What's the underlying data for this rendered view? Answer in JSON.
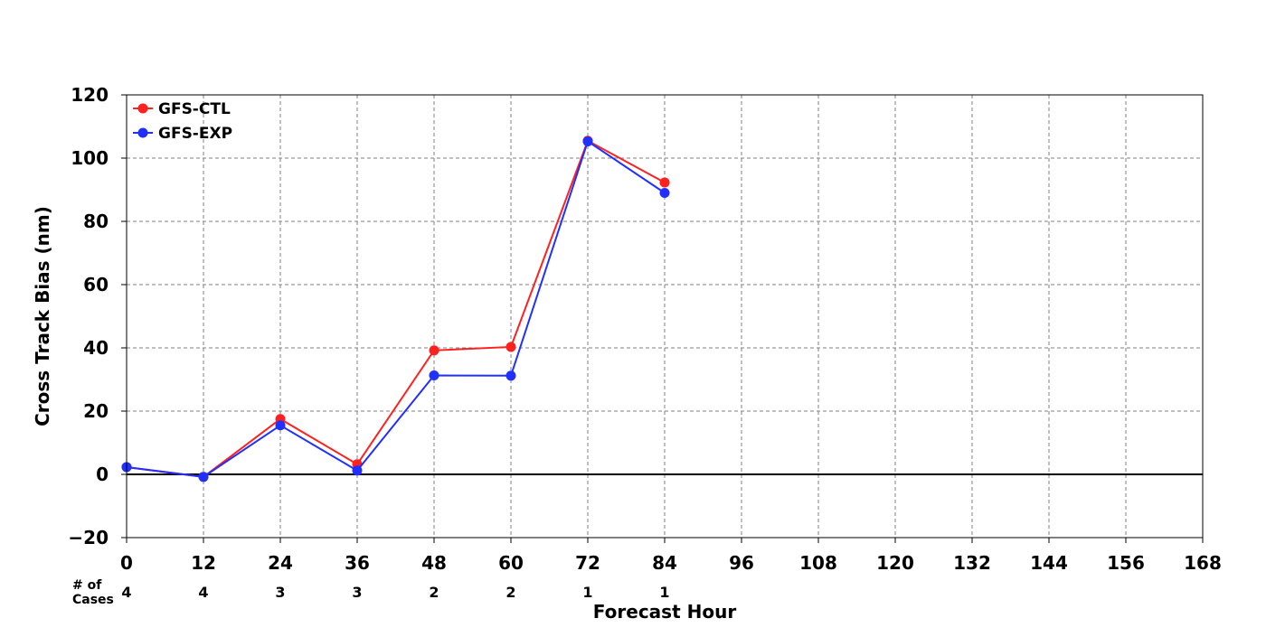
{
  "chart_data": {
    "type": "line",
    "title": "",
    "xlabel": "Forecast Hour",
    "ylabel": "Cross Track Bias (nm)",
    "xlim": [
      0,
      168
    ],
    "ylim": [
      -20,
      120
    ],
    "x_ticks": [
      0,
      12,
      24,
      36,
      48,
      60,
      72,
      84,
      96,
      108,
      120,
      132,
      144,
      156,
      168
    ],
    "y_ticks": [
      -20,
      0,
      20,
      40,
      60,
      80,
      100,
      120
    ],
    "x_tick_labels": [
      "0",
      "12",
      "24",
      "36",
      "48",
      "60",
      "72",
      "84",
      "96",
      "108",
      "120",
      "132",
      "144",
      "156",
      "168"
    ],
    "y_tick_labels": [
      "−20",
      "0",
      "20",
      "40",
      "60",
      "80",
      "100",
      "120"
    ],
    "grid": true,
    "grid_style": "dashed",
    "zero_line": true,
    "legend_position": "top-left",
    "series": [
      {
        "name": "GFS-CTL",
        "color": "#ff2020",
        "x": [
          0,
          12,
          24,
          36,
          48,
          60,
          72,
          84
        ],
        "values": [
          2.3,
          -0.8,
          17.5,
          3.2,
          39.2,
          40.3,
          105.5,
          92.3
        ]
      },
      {
        "name": "GFS-EXP",
        "color": "#2030ff",
        "x": [
          0,
          12,
          24,
          36,
          48,
          60,
          72,
          84
        ],
        "values": [
          2.3,
          -0.8,
          15.5,
          1.2,
          31.3,
          31.2,
          105.3,
          89.0
        ]
      }
    ],
    "cases_label_line1": "# of",
    "cases_label_line2": "Cases",
    "cases": {
      "x": [
        0,
        12,
        24,
        36,
        48,
        60,
        72,
        84
      ],
      "labels": [
        "4",
        "4",
        "3",
        "3",
        "2",
        "2",
        "1",
        "1"
      ]
    }
  }
}
